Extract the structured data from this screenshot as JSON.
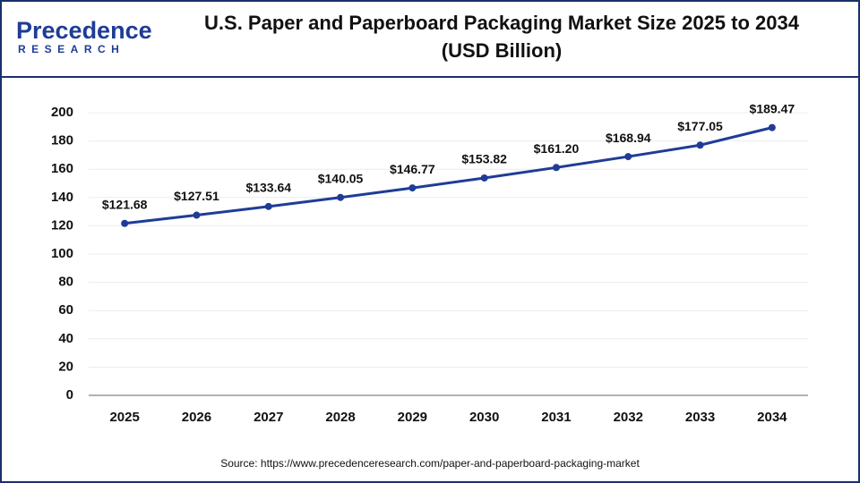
{
  "logo": {
    "name": "Precedence",
    "tagline": "RESEARCH"
  },
  "chart_data": {
    "type": "line",
    "title": "U.S. Paper and Paperboard Packaging Market Size 2025 to 2034",
    "subtitle": "(USD Billion)",
    "categories": [
      "2025",
      "2026",
      "2027",
      "2028",
      "2029",
      "2030",
      "2031",
      "2032",
      "2033",
      "2034"
    ],
    "values": [
      121.68,
      127.51,
      133.64,
      140.05,
      146.77,
      153.82,
      161.2,
      168.94,
      177.05,
      189.47
    ],
    "value_labels": [
      "$121.68",
      "$127.51",
      "$133.64",
      "$140.05",
      "$146.77",
      "$153.82",
      "$161.20",
      "$168.94",
      "$177.05",
      "$189.47"
    ],
    "color": "#1f3c96",
    "ylim": [
      0,
      200
    ],
    "yticks": [
      0,
      20,
      40,
      60,
      80,
      100,
      120,
      140,
      160,
      180,
      200
    ],
    "grid": true,
    "source": "Source: https://www.precedenceresearch.com/paper-and-paperboard-packaging-market"
  }
}
